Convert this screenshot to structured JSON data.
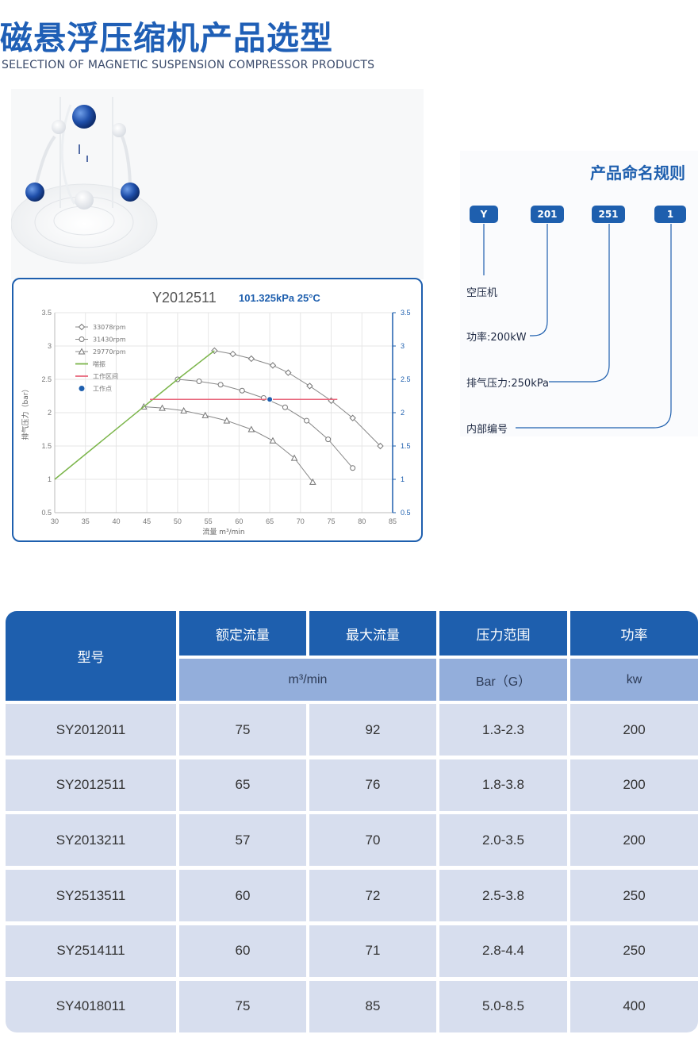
{
  "header": {
    "title": "磁悬浮压缩机产品选型",
    "subtitle": "SELECTION OF MAGNETIC SUSPENSION COMPRESSOR PRODUCTS"
  },
  "chart_card": {
    "model": "Y2012511",
    "condition": "101.325kPa 25°C"
  },
  "chart_data": {
    "type": "line",
    "xlabel": "流量 m³/min",
    "ylabel": "排气压力（bar）",
    "xlim": [
      30,
      85
    ],
    "ylim": [
      0.5,
      3.5
    ],
    "xticks": [
      30,
      35,
      40,
      45,
      50,
      55,
      60,
      65,
      70,
      75,
      80,
      85
    ],
    "yticks": [
      0.5,
      1,
      1.5,
      2,
      2.5,
      3,
      3.5
    ],
    "grid": true,
    "legend_position": "top-left",
    "series": [
      {
        "name": "33078rpm",
        "marker": "diamond",
        "x": [
          56,
          59,
          62,
          65.5,
          68,
          71.5,
          75,
          78.5,
          83
        ],
        "y": [
          2.93,
          2.88,
          2.81,
          2.71,
          2.6,
          2.4,
          2.18,
          1.92,
          1.5
        ]
      },
      {
        "name": "31430rpm",
        "marker": "circle",
        "x": [
          50,
          53.5,
          57,
          60.5,
          64,
          67.5,
          71,
          74.5,
          78.5
        ],
        "y": [
          2.5,
          2.47,
          2.42,
          2.33,
          2.22,
          2.08,
          1.88,
          1.6,
          1.17
        ]
      },
      {
        "name": "29770rpm",
        "marker": "triangle",
        "x": [
          44.5,
          47.5,
          51,
          54.5,
          58,
          62,
          65.5,
          69,
          72
        ],
        "y": [
          2.09,
          2.07,
          2.03,
          1.96,
          1.88,
          1.75,
          1.58,
          1.32,
          0.96
        ]
      },
      {
        "name": "喘振",
        "color": "#7bb54a",
        "x": [
          30,
          44.5,
          50,
          56
        ],
        "y": [
          1.0,
          2.09,
          2.5,
          2.93
        ]
      },
      {
        "name": "工作区间",
        "color": "#e8677c",
        "x": [
          45.5,
          76
        ],
        "y": [
          2.2,
          2.2
        ]
      },
      {
        "name": "工作点",
        "color": "#1e5fae",
        "x": [
          65
        ],
        "y": [
          2.2
        ]
      }
    ]
  },
  "naming": {
    "title": "产品命名规则",
    "codes": [
      "Y",
      "201",
      "251",
      "1"
    ],
    "labels": [
      "空压机",
      "功率:200kW",
      "排气压力:250kPa",
      "内部编号"
    ]
  },
  "table": {
    "col_model": "型号",
    "headers": [
      "额定流量",
      "最大流量",
      "压力范围",
      "功率"
    ],
    "units": [
      "m³/min",
      "Bar（G）",
      "kw"
    ],
    "rows": [
      [
        "SY2012011",
        "75",
        "92",
        "1.3-2.3",
        "200"
      ],
      [
        "SY2012511",
        "65",
        "76",
        "1.8-3.8",
        "200"
      ],
      [
        "SY2013211",
        "57",
        "70",
        "2.0-3.5",
        "200"
      ],
      [
        "SY2513511",
        "60",
        "72",
        "2.5-3.8",
        "250"
      ],
      [
        "SY2514111",
        "60",
        "71",
        "2.8-4.4",
        "250"
      ],
      [
        "SY4018011",
        "75",
        "85",
        "5.0-8.5",
        "400"
      ]
    ]
  },
  "colors": {
    "brand": "#1e5fae",
    "subheader": "#93aedb",
    "row": "#d7deee",
    "surge": "#7bb54a",
    "range": "#e8677c"
  }
}
